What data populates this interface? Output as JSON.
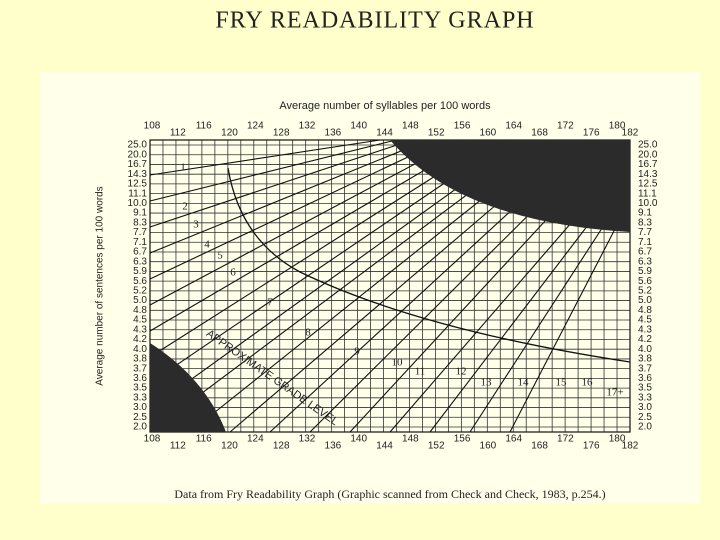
{
  "title": "FRY READABILITY GRAPH",
  "graph": {
    "top_axis_title": "Average number of syllables per 100 words",
    "left_axis_title": "Average number of sentences per 100 words",
    "x_labels": [
      "108",
      "112",
      "116",
      "120",
      "124",
      "128",
      "132",
      "136",
      "140",
      "144",
      "148",
      "152",
      "156",
      "160",
      "164",
      "168",
      "172",
      "176",
      "180",
      "182"
    ],
    "y_labels": [
      "25.0",
      "20.0",
      "16.7",
      "14.3",
      "12.5",
      "11.1",
      "10.0",
      "9.1",
      "8.3",
      "7.7",
      "7.1",
      "6.7",
      "6.3",
      "5.9",
      "5.6",
      "5.2",
      "5.0",
      "4.8",
      "4.5",
      "4.3",
      "4.2",
      "4.0",
      "3.8",
      "3.7",
      "3.6",
      "3.5",
      "3.3",
      "3.0",
      "2.5",
      "2.0"
    ],
    "grade_labels": [
      "1",
      "2",
      "3",
      "4",
      "5",
      "6",
      "7",
      "8",
      "9",
      "10",
      "11",
      "12",
      "13",
      "14",
      "15",
      "16",
      "17+"
    ],
    "grade_level_label": "APPROXIMATE GRADE LEVEL"
  },
  "caption": "Data from Fry Readability Graph (Graphic scanned from Check and Check, 1983, p.254.)"
}
